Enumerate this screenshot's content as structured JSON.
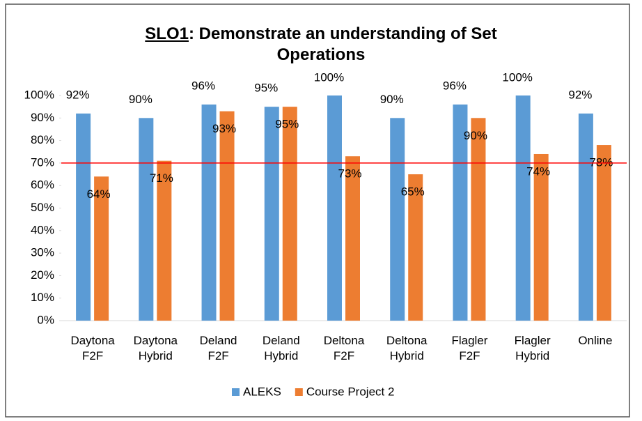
{
  "chart_data": {
    "type": "bar",
    "title": {
      "underlined": "SLO1",
      "rest": ": Demonstrate an understanding of Set Operations"
    },
    "categories": [
      "Daytona F2F",
      "Daytona Hybrid",
      "Deland F2F",
      "Deland Hybrid",
      "Deltona F2F",
      "Deltona Hybrid",
      "Flagler F2F",
      "Flagler Hybrid",
      "Online"
    ],
    "series": [
      {
        "name": "ALEKS",
        "color": "#5b9bd5",
        "values": [
          92,
          90,
          96,
          95,
          100,
          90,
          96,
          100,
          92
        ],
        "value_labels": [
          "92%",
          "90%",
          "96%",
          "95%",
          "100%",
          "90%",
          "96%",
          "100%",
          "92%"
        ]
      },
      {
        "name": "Course Project 2",
        "color": "#ed7d31",
        "values": [
          64,
          71,
          93,
          95,
          73,
          65,
          90,
          74,
          78
        ],
        "value_labels": [
          "64%",
          "71%",
          "93%",
          "95%",
          "73%",
          "65%",
          "90%",
          "74%",
          "78%"
        ]
      }
    ],
    "ylim": [
      0,
      100
    ],
    "yticks": [
      {
        "value": 0,
        "label": "0%"
      },
      {
        "value": 10,
        "label": "10%"
      },
      {
        "value": 20,
        "label": "20%"
      },
      {
        "value": 30,
        "label": "30%"
      },
      {
        "value": 40,
        "label": "40%"
      },
      {
        "value": 50,
        "label": "50%"
      },
      {
        "value": 60,
        "label": "60%"
      },
      {
        "value": 70,
        "label": "70%"
      },
      {
        "value": 80,
        "label": "80%"
      },
      {
        "value": 90,
        "label": "90%"
      },
      {
        "value": 100,
        "label": "100%"
      }
    ],
    "reference_line": {
      "value": 70,
      "color": "#ff0000"
    },
    "legend": "bottom"
  }
}
